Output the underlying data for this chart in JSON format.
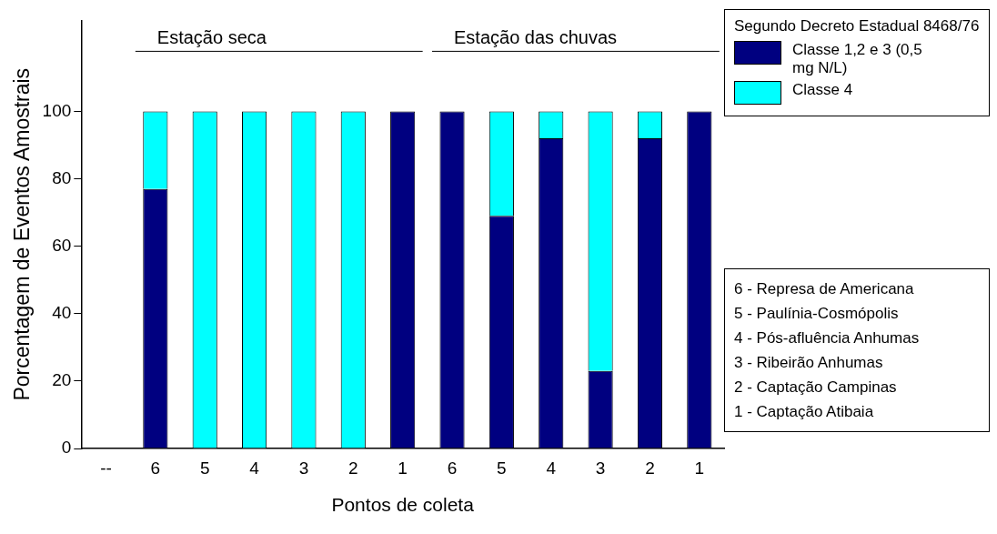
{
  "chart_data": {
    "type": "bar",
    "stacked": true,
    "xlabel": "Pontos de coleta",
    "ylabel": "Porcentagem de Eventos Amostrais",
    "legend_title": "Segundo Decreto Estadual 8468/76",
    "legend": "top right",
    "grid": false,
    "categories": [
      "--",
      "6",
      "5",
      "4",
      "3",
      "2",
      "1",
      "6",
      "5",
      "4",
      "3",
      "2",
      "1"
    ],
    "series": [
      {
        "name": "Classe 1,2 e 3 (0,5 mg N/L)",
        "color": "#000080",
        "values": [
          null,
          77,
          0,
          0,
          0,
          0,
          100,
          100,
          69,
          92,
          23,
          92,
          100
        ]
      },
      {
        "name": "Classe 4",
        "color": "#00ffff",
        "values": [
          null,
          23,
          100,
          100,
          100,
          100,
          0,
          0,
          31,
          8,
          77,
          8,
          0
        ]
      }
    ],
    "ylim": [
      0,
      127
    ],
    "yticks": [
      0,
      20,
      40,
      60,
      80,
      100
    ],
    "annotations": [
      "Estação seca",
      "Estação das chuvas",
      "6 - Represa de Americana",
      "5 - Paulínia-Cosmópolis",
      "4 - Pós-afluência Anhumas",
      "3 - Ribeirão Anhumas",
      "2 - Captação Campinas",
      "1 - Captação Atibaia"
    ]
  }
}
